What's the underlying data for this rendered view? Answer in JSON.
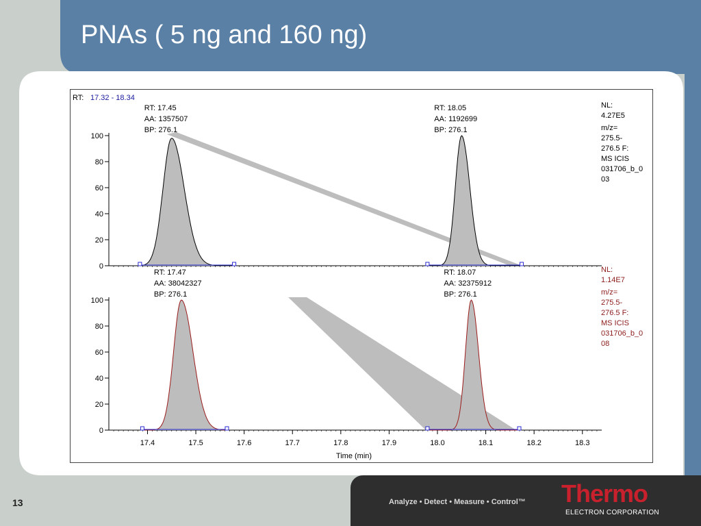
{
  "slide": {
    "title": "PNAs ( 5 ng and 160 ng)",
    "page_number": "13",
    "footer": {
      "tagline": "Analyze • Detect • Measure • Control™",
      "logo_word": "Thermo",
      "logo_subtitle": "ELECTRON CORPORATION"
    },
    "colors": {
      "header_blue": "#5b80a5",
      "slide_background": "#c9cfcb",
      "footer_dark": "#2e2e2e",
      "logo_red": "#c8202c"
    }
  },
  "chart_data": {
    "type": "line",
    "rt_range_label": "RT:",
    "rt_range_value": "17.32 - 18.34",
    "xlabel": "Time (min)",
    "xlim": [
      17.32,
      18.34
    ],
    "x_ticks": [
      "17.4",
      "17.5",
      "17.6",
      "17.7",
      "17.8",
      "17.9",
      "18.0",
      "18.1",
      "18.2",
      "18.3"
    ],
    "panels": [
      {
        "id": "top",
        "color": "#000000",
        "label_color": "#000000",
        "ylim": [
          0,
          100
        ],
        "y_ticks": [
          "0",
          "20",
          "40",
          "60",
          "80",
          "100"
        ],
        "nl_label": "NL:",
        "nl_value": "4.27E5",
        "info_lines": [
          "m/z=",
          "275.5-",
          "276.5 F:",
          "MS  ICIS",
          "031706_b_0",
          "03"
        ],
        "peaks": [
          {
            "rt": 17.45,
            "height": 98,
            "sigma_left": 0.018,
            "sigma_right": 0.026,
            "start": 17.385,
            "end": 17.58,
            "labels": [
              "RT: 17.45",
              "AA: 1357507",
              "BP: 276.1"
            ]
          },
          {
            "rt": 18.05,
            "height": 100,
            "sigma_left": 0.013,
            "sigma_right": 0.017,
            "start": 17.98,
            "end": 18.175,
            "labels": [
              "RT: 18.05",
              "AA: 1192699",
              "BP: 276.1"
            ]
          }
        ]
      },
      {
        "id": "bottom",
        "color": "#9b1b1b",
        "label_color": "#8b1a1a",
        "ylim": [
          0,
          100
        ],
        "y_ticks": [
          "0",
          "20",
          "40",
          "60",
          "80",
          "100"
        ],
        "nl_label": "NL:",
        "nl_value": "1.14E7",
        "info_lines": [
          "m/z=",
          "275.5-",
          "276.5 F:",
          "MS  ICIS",
          "031706_b_0",
          "08"
        ],
        "peaks": [
          {
            "rt": 17.47,
            "height": 100,
            "sigma_left": 0.016,
            "sigma_right": 0.024,
            "start": 17.39,
            "end": 17.565,
            "labels": [
              "RT: 17.47",
              "AA: 38042327",
              "BP: 276.1"
            ]
          },
          {
            "rt": 18.07,
            "height": 100,
            "sigma_left": 0.012,
            "sigma_right": 0.015,
            "start": 17.98,
            "end": 18.17,
            "labels": [
              "RT: 18.07",
              "AA: 32375912",
              "BP: 276.1"
            ]
          }
        ]
      }
    ],
    "annotations": "gray bands link peak regions between panels"
  }
}
